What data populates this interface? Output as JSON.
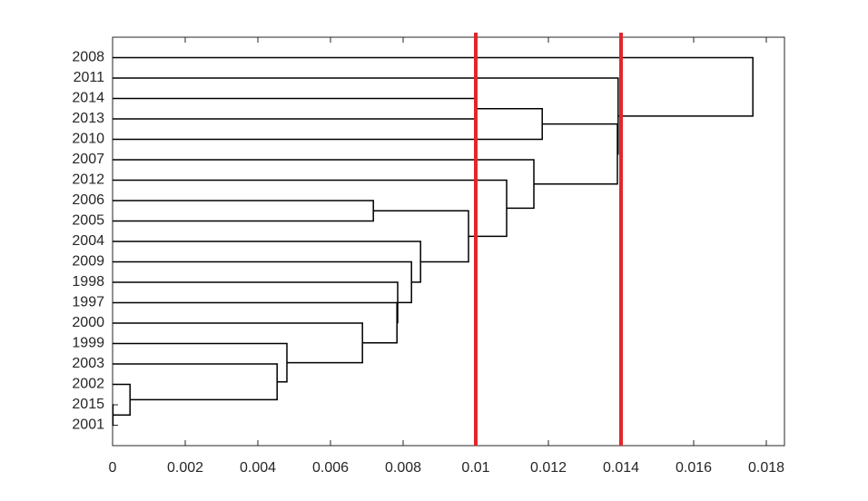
{
  "chart_data": {
    "type": "dendrogram",
    "categories": [
      "2008",
      "2011",
      "2014",
      "2013",
      "2010",
      "2007",
      "2012",
      "2006",
      "2005",
      "2004",
      "2009",
      "1998",
      "1997",
      "2000",
      "1999",
      "2003",
      "2002",
      "2015",
      "2001"
    ],
    "merges": [
      {
        "left": 17,
        "right": 18,
        "height": 1e-05
      },
      {
        "left": 16,
        "right": 19,
        "height": 0.00048
      },
      {
        "left": 15,
        "right": 20,
        "height": 0.00453
      },
      {
        "left": 14,
        "right": 21,
        "height": 0.0048
      },
      {
        "left": 13,
        "right": 22,
        "height": 0.00688
      },
      {
        "left": 12,
        "right": 23,
        "height": 0.00783
      },
      {
        "left": 11,
        "right": 24,
        "height": 0.00785
      },
      {
        "left": 10,
        "right": 25,
        "height": 0.00823
      },
      {
        "left": 9,
        "right": 26,
        "height": 0.00848
      },
      {
        "left": 7,
        "right": 8,
        "height": 0.00718
      },
      {
        "left": 28,
        "right": 27,
        "height": 0.0098
      },
      {
        "left": 6,
        "right": 29,
        "height": 0.01085
      },
      {
        "left": 5,
        "right": 30,
        "height": 0.0116
      },
      {
        "left": 2,
        "right": 3,
        "height": 0.01
      },
      {
        "left": 32,
        "right": 4,
        "height": 0.01183
      },
      {
        "left": 33,
        "right": 31,
        "height": 0.0139
      },
      {
        "left": 1,
        "right": 34,
        "height": 0.01392
      },
      {
        "left": 0,
        "right": 35,
        "height": 0.01763
      }
    ],
    "color": "#000000",
    "xlim": [
      0,
      0.0185
    ],
    "xticks": [
      0,
      0.002,
      0.004,
      0.006,
      0.008,
      0.01,
      0.012,
      0.014,
      0.016,
      0.018
    ],
    "cut_lines": [
      0.01,
      0.014
    ],
    "cut_color": "#e3262b"
  }
}
